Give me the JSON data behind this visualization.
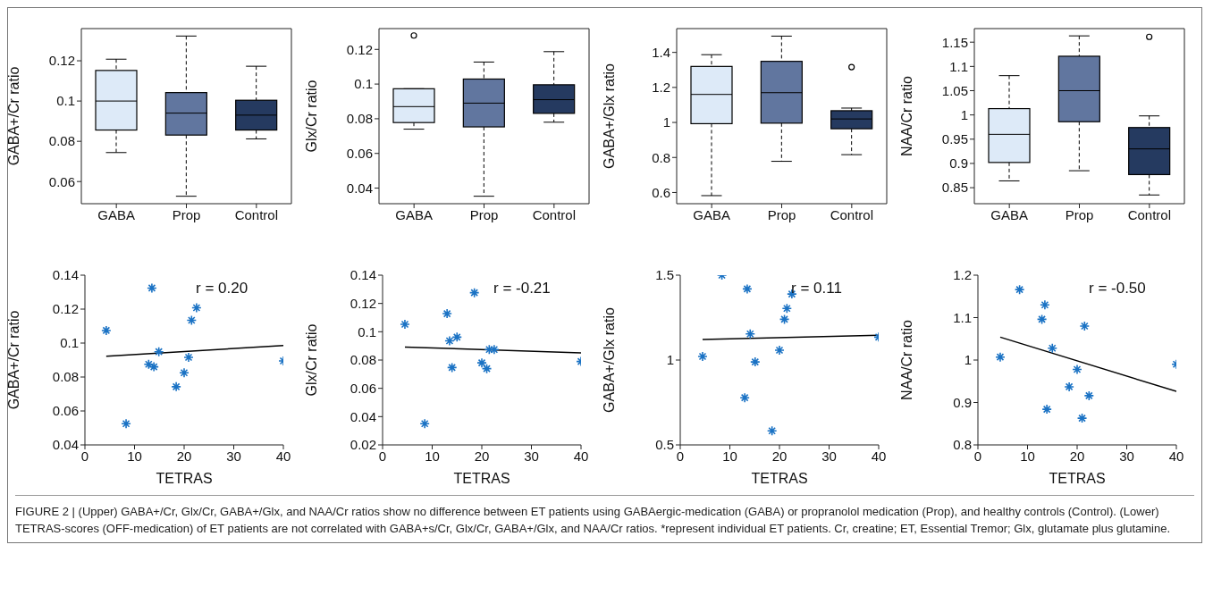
{
  "chart_data": [
    {
      "type": "box",
      "ylabel": "GABA+/Cr ratio",
      "categories": [
        "GABA",
        "Prop",
        "Control"
      ],
      "colors": [
        "#ddeaf8",
        "#61769f",
        "#253a60"
      ],
      "ylim": [
        0.049,
        0.136
      ],
      "yticks": [
        0.06,
        0.08,
        0.1,
        0.12
      ],
      "boxes": [
        {
          "low": 0.0744,
          "q1": 0.0856,
          "median": 0.1,
          "q3": 0.1152,
          "high": 0.1208
        },
        {
          "low": 0.0527,
          "q1": 0.0831,
          "median": 0.094,
          "q3": 0.1042,
          "high": 0.1323
        },
        {
          "low": 0.0812,
          "q1": 0.0856,
          "median": 0.093,
          "q3": 0.1004,
          "high": 0.1173
        }
      ]
    },
    {
      "type": "box",
      "ylabel": "Glx/Cr ratio",
      "categories": [
        "GABA",
        "Prop",
        "Control"
      ],
      "colors": [
        "#ddeaf8",
        "#61769f",
        "#253a60"
      ],
      "ylim": [
        0.031,
        0.132
      ],
      "yticks": [
        0.04,
        0.06,
        0.08,
        0.1,
        0.12
      ],
      "boxes": [
        {
          "low": 0.074,
          "q1": 0.0778,
          "median": 0.087,
          "q3": 0.0973,
          "high": 0.0973,
          "outliers": [
            0.128
          ]
        },
        {
          "low": 0.0353,
          "q1": 0.0753,
          "median": 0.089,
          "q3": 0.1029,
          "high": 0.1127
        },
        {
          "low": 0.078,
          "q1": 0.0831,
          "median": 0.091,
          "q3": 0.0996,
          "high": 0.1187
        }
      ]
    },
    {
      "type": "box",
      "ylabel": "GABA+/Glx ratio",
      "categories": [
        "GABA",
        "Prop",
        "Control"
      ],
      "colors": [
        "#ddeaf8",
        "#61769f",
        "#253a60"
      ],
      "ylim": [
        0.536,
        1.536
      ],
      "yticks": [
        0.6,
        0.8,
        1,
        1.2,
        1.4
      ],
      "boxes": [
        {
          "low": 0.582,
          "q1": 0.993,
          "median": 1.16,
          "q3": 1.32,
          "high": 1.387
        },
        {
          "low": 0.778,
          "q1": 0.996,
          "median": 1.17,
          "q3": 1.349,
          "high": 1.493
        },
        {
          "low": 0.816,
          "q1": 0.964,
          "median": 1.02,
          "q3": 1.067,
          "high": 1.082,
          "outliers": [
            1.316
          ]
        }
      ]
    },
    {
      "type": "box",
      "ylabel": "NAA/Cr ratio",
      "categories": [
        "GABA",
        "Prop",
        "Control"
      ],
      "colors": [
        "#ddeaf8",
        "#61769f",
        "#253a60"
      ],
      "ylim": [
        0.817,
        1.178
      ],
      "yticks": [
        0.85,
        0.9,
        0.95,
        1,
        1.05,
        1.1,
        1.15
      ],
      "boxes": [
        {
          "low": 0.864,
          "q1": 0.902,
          "median": 0.96,
          "q3": 1.013,
          "high": 1.081
        },
        {
          "low": 0.885,
          "q1": 0.986,
          "median": 1.05,
          "q3": 1.121,
          "high": 1.163
        },
        {
          "low": 0.835,
          "q1": 0.877,
          "median": 0.93,
          "q3": 0.974,
          "high": 0.998,
          "outliers": [
            1.161
          ]
        }
      ]
    },
    {
      "type": "scatter",
      "xlabel": "TETRAS",
      "ylabel": "GABA+/Cr ratio",
      "xlim": [
        0,
        40
      ],
      "xticks": [
        0,
        10,
        20,
        30,
        40
      ],
      "ylim": [
        0.04,
        0.14
      ],
      "yticks": [
        0.04,
        0.06,
        0.08,
        0.1,
        0.12,
        0.14
      ],
      "annotations": [
        "r = 0.20"
      ],
      "series": [
        {
          "type": "scatter",
          "marker": "cross",
          "color": "#1a72c4",
          "x": [
            4.3,
            8.3,
            13.5,
            12.85,
            13.9,
            14.9,
            18.4,
            20,
            20.9,
            21.5,
            22.5,
            40
          ],
          "values": [
            0.1074,
            0.0525,
            0.1324,
            0.0875,
            0.086,
            0.0949,
            0.0743,
            0.0825,
            0.0916,
            0.1134,
            0.1208,
            0.0895
          ]
        },
        {
          "type": "line",
          "marker": "none",
          "color": "#000000",
          "x": [
            4.3,
            40
          ],
          "values": [
            0.0923,
            0.0985
          ]
        }
      ]
    },
    {
      "type": "scatter",
      "xlabel": "TETRAS",
      "ylabel": "Glx/Cr ratio",
      "xlim": [
        0,
        40
      ],
      "xticks": [
        0,
        10,
        20,
        30,
        40
      ],
      "ylim": [
        0.02,
        0.14
      ],
      "yticks": [
        0.02,
        0.04,
        0.06,
        0.08,
        0.1,
        0.12,
        0.14
      ],
      "annotations": [
        "r = -0.21"
      ],
      "series": [
        {
          "type": "scatter",
          "marker": "cross",
          "color": "#1a72c4",
          "x": [
            4.5,
            8.5,
            13,
            13.5,
            15,
            14,
            18.5,
            20,
            21,
            21.5,
            22.5,
            40
          ],
          "values": [
            0.1053,
            0.035,
            0.1128,
            0.0936,
            0.0962,
            0.0747,
            0.1276,
            0.078,
            0.0739,
            0.0874,
            0.0874,
            0.079
          ]
        },
        {
          "type": "line",
          "marker": "none",
          "color": "#000000",
          "x": [
            4.5,
            40
          ],
          "values": [
            0.0892,
            0.085
          ]
        }
      ]
    },
    {
      "type": "scatter",
      "xlabel": "TETRAS",
      "ylabel": "GABA+/Glx ratio",
      "xlim": [
        0,
        40
      ],
      "xticks": [
        0,
        10,
        20,
        30,
        40
      ],
      "ylim": [
        0.5,
        1.5
      ],
      "yticks": [
        0.5,
        1,
        1.5
      ],
      "annotations": [
        "r = 0.11"
      ],
      "series": [
        {
          "type": "scatter",
          "marker": "cross",
          "color": "#1a72c4",
          "x": [
            4.5,
            8.4,
            13.5,
            13,
            14.1,
            15.1,
            18.5,
            20,
            21,
            21.5,
            22.5,
            40
          ],
          "values": [
            1.021,
            1.5,
            1.419,
            0.778,
            1.154,
            0.989,
            0.583,
            1.058,
            1.24,
            1.304,
            1.389,
            1.135
          ]
        },
        {
          "type": "line",
          "marker": "none",
          "color": "#000000",
          "x": [
            4.5,
            40
          ],
          "values": [
            1.121,
            1.146
          ]
        }
      ]
    },
    {
      "type": "scatter",
      "xlabel": "TETRAS",
      "ylabel": "NAA/Cr ratio",
      "xlim": [
        0,
        40
      ],
      "xticks": [
        0,
        10,
        20,
        30,
        40
      ],
      "ylim": [
        0.8,
        1.2
      ],
      "yticks": [
        0.8,
        0.9,
        1,
        1.1,
        1.2
      ],
      "annotations": [
        "r = -0.50",
        "FIGURE 2 | (Upper) GABA+/Cr, Glx/Cr, GABA+/Glx, and NAA/Cr ratios show no difference between ET patients using GABAergic-medication (GABA) or propranolol medication (Prop), and healthy controls (Control). (Lower) TETRAS-scores (OFF-medication) of ET patients are not correlated with GABA+s/Cr, Glx/Cr, GABA+/Glx, and NAA/Cr ratios. *represent individual ET patients. Cr, creatine; ET, Essential Tremor; Glx, glutamate plus glutamine."
      ],
      "series": [
        {
          "type": "scatter",
          "marker": "cross",
          "color": "#1a72c4",
          "x": [
            4.5,
            8.4,
            13.5,
            12.9,
            13.9,
            15,
            18.4,
            20,
            21,
            21.5,
            22.4,
            40
          ],
          "values": [
            1.007,
            1.166,
            1.13,
            1.096,
            0.884,
            1.028,
            0.937,
            0.978,
            0.863,
            1.08,
            0.916,
            0.99
          ]
        },
        {
          "type": "line",
          "marker": "none",
          "color": "#000000",
          "x": [
            4.5,
            40
          ],
          "values": [
            1.054,
            0.926
          ]
        }
      ]
    }
  ]
}
